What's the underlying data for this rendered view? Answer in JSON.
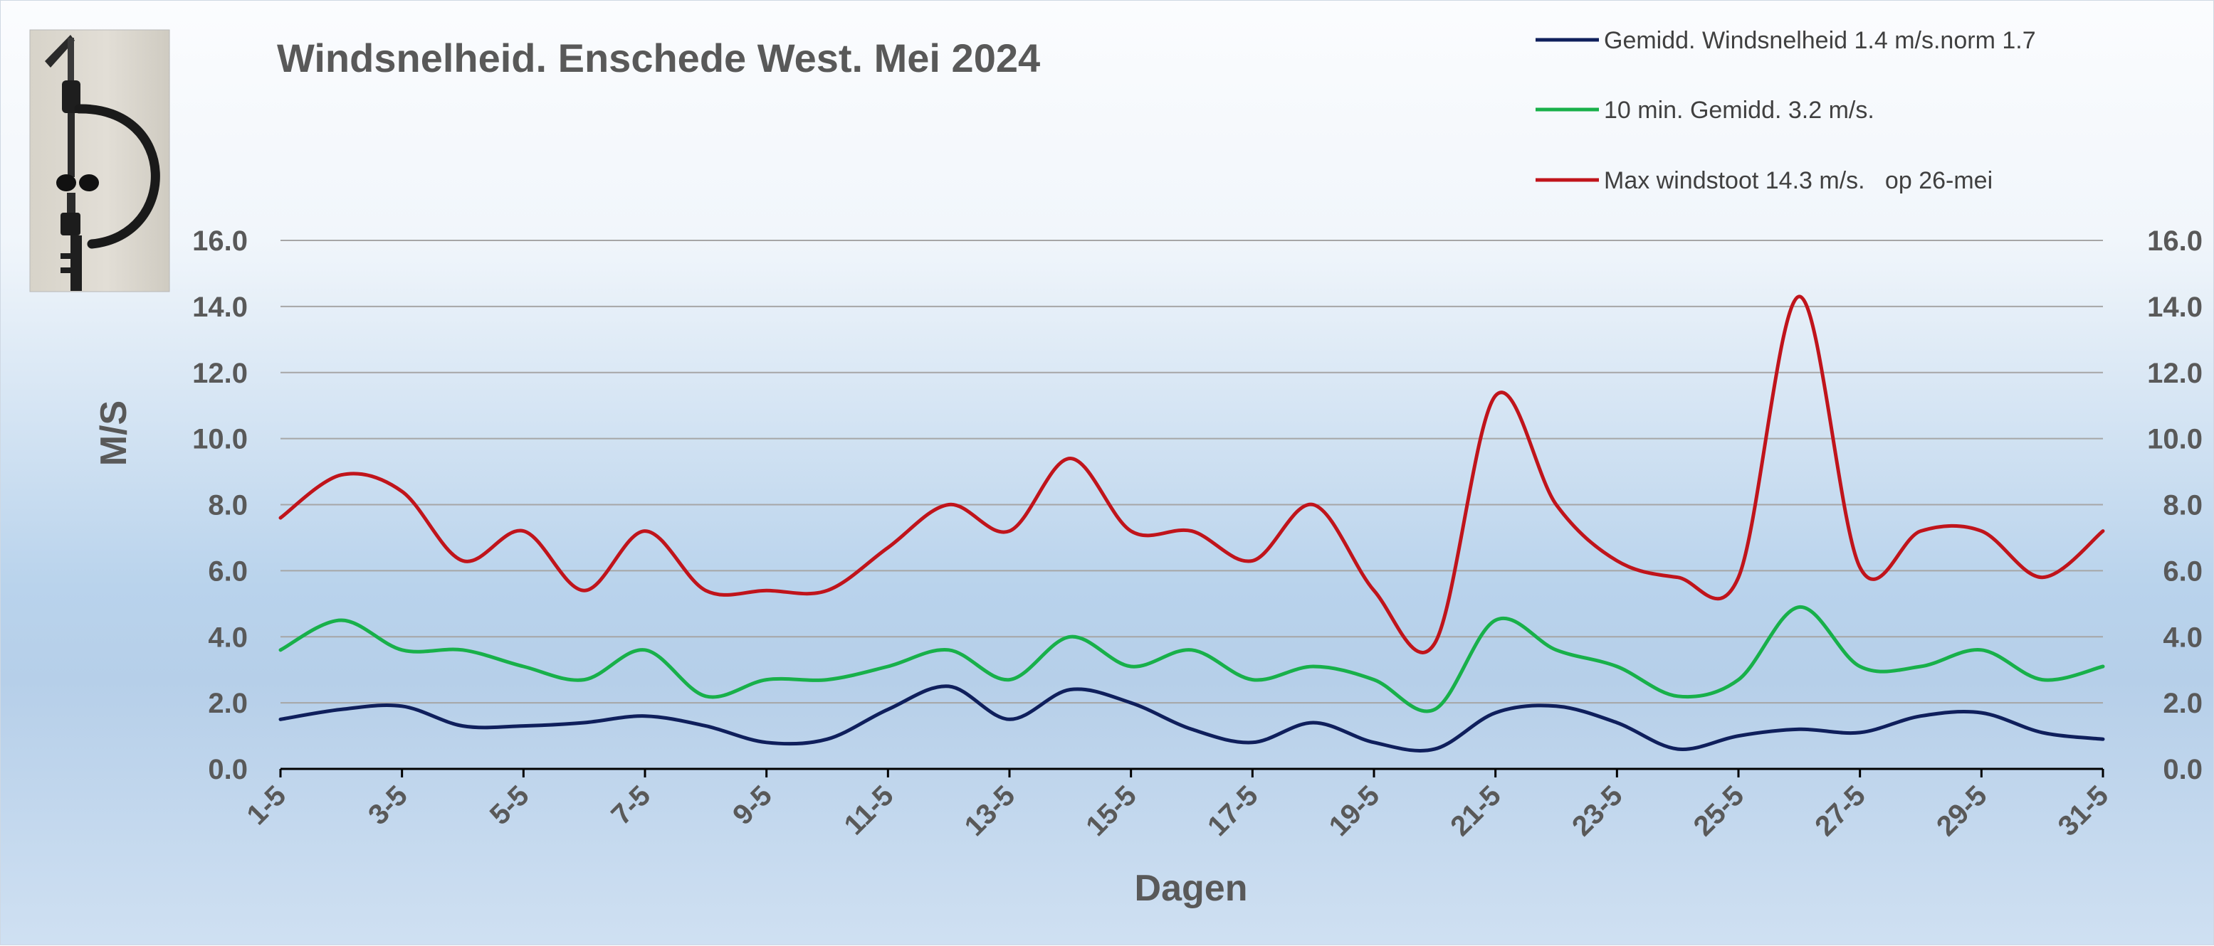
{
  "chart_data": {
    "type": "line",
    "title": "Windsnelheid. Enschede West. Mei 2024",
    "xlabel": "Dagen",
    "ylabel": "M/S",
    "ylim": [
      0,
      16
    ],
    "yticks": [
      "0.0",
      "2.0",
      "4.0",
      "6.0",
      "8.0",
      "10.0",
      "12.0",
      "14.0",
      "16.0"
    ],
    "secondary_y_axis": true,
    "grid": true,
    "legend_position": "top-right",
    "categories": [
      "1-5",
      "2-5",
      "3-5",
      "4-5",
      "5-5",
      "6-5",
      "7-5",
      "8-5",
      "9-5",
      "10-5",
      "11-5",
      "12-5",
      "13-5",
      "14-5",
      "15-5",
      "16-5",
      "17-5",
      "18-5",
      "19-5",
      "20-5",
      "21-5",
      "22-5",
      "23-5",
      "24-5",
      "25-5",
      "26-5",
      "27-5",
      "28-5",
      "29-5",
      "30-5",
      "31-5"
    ],
    "x_tick_labels": [
      "1-5",
      "3-5",
      "5-5",
      "7-5",
      "9-5",
      "11-5",
      "13-5",
      "15-5",
      "17-5",
      "19-5",
      "21-5",
      "23-5",
      "25-5",
      "27-5",
      "29-5",
      "31-5"
    ],
    "series": [
      {
        "name": "Gemidd. Windsnelheid 1.4 m/s.norm 1.7",
        "color": "#0f1f5c",
        "values": [
          1.5,
          1.8,
          1.9,
          1.3,
          1.3,
          1.4,
          1.6,
          1.3,
          0.8,
          0.9,
          1.8,
          2.5,
          1.5,
          2.4,
          2.0,
          1.2,
          0.8,
          1.4,
          0.8,
          0.6,
          1.7,
          1.9,
          1.4,
          0.6,
          1.0,
          1.2,
          1.1,
          1.6,
          1.7,
          1.1,
          0.9
        ]
      },
      {
        "name": "10 min. Gemidd. 3.2 m/s.",
        "color": "#18b04a",
        "values": [
          3.6,
          4.5,
          3.6,
          3.6,
          3.1,
          2.7,
          3.6,
          2.2,
          2.7,
          2.7,
          3.1,
          3.6,
          2.7,
          4.0,
          3.1,
          3.6,
          2.7,
          3.1,
          2.7,
          1.8,
          4.5,
          3.6,
          3.1,
          2.2,
          2.7,
          4.9,
          3.1,
          3.1,
          3.6,
          2.7,
          3.1
        ]
      },
      {
        "name": "Max windstoot 14.3 m/s.   op 26-mei",
        "color": "#c0141b",
        "values": [
          7.6,
          8.9,
          8.4,
          6.3,
          7.2,
          5.4,
          7.2,
          5.4,
          5.4,
          5.4,
          6.7,
          8.0,
          7.2,
          9.4,
          7.2,
          7.2,
          6.3,
          8.0,
          5.4,
          3.8,
          11.3,
          8.0,
          6.3,
          5.8,
          5.8,
          14.3,
          6.1,
          7.2,
          7.2,
          5.8,
          7.2
        ]
      }
    ]
  },
  "colors": {
    "gridline": "#a6a6a6",
    "axis": "#000000",
    "text": "#595959"
  },
  "images": {
    "anemometer_photo": "anemometer-photo"
  }
}
